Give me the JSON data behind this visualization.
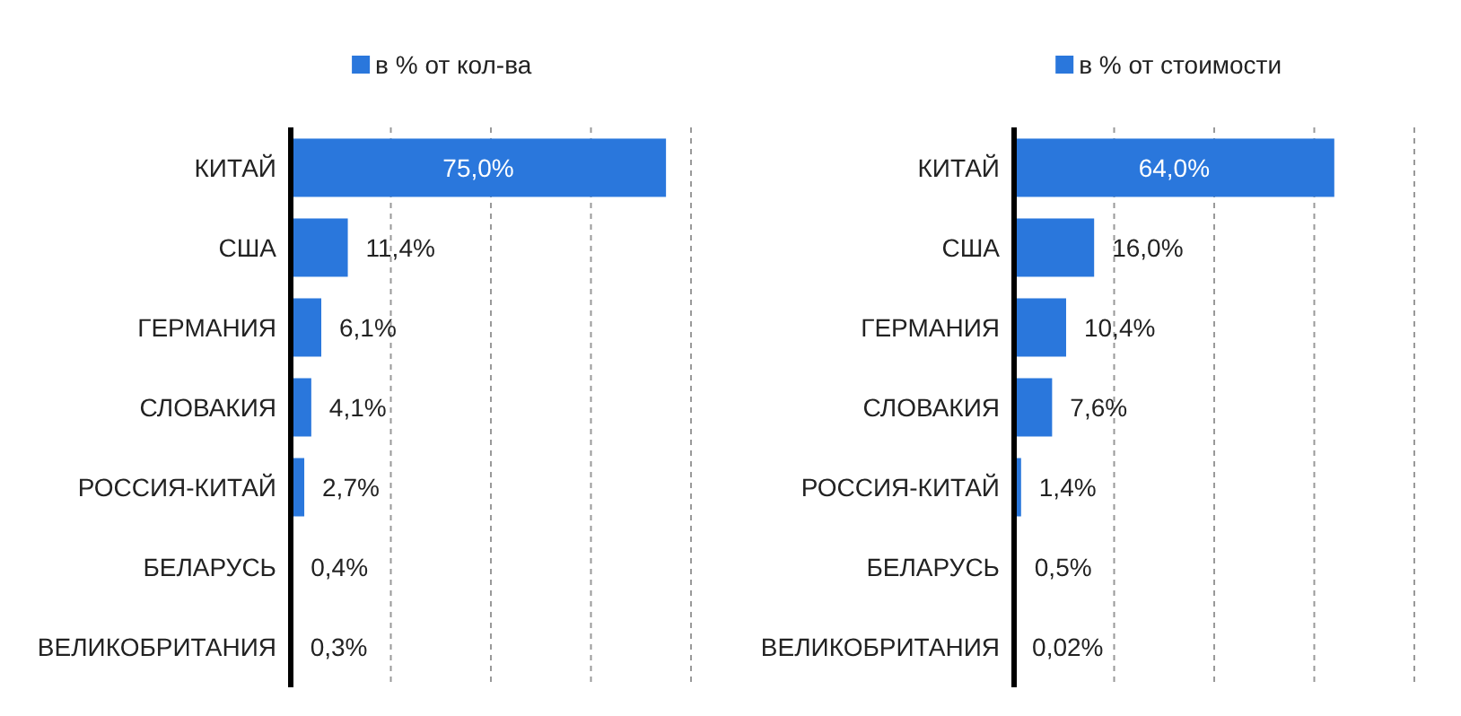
{
  "chart_data": [
    {
      "type": "bar",
      "orientation": "horizontal",
      "categories": [
        "КИТАЙ",
        "США",
        "ГЕРМАНИЯ",
        "СЛОВАКИЯ",
        "РОССИЯ-КИТАЙ",
        "БЕЛАРУСЬ",
        "ВЕЛИКОБРИТАНИЯ"
      ],
      "series": [
        {
          "name": "в % от кол-ва",
          "color": "#2a77dc",
          "values": [
            75.0,
            11.4,
            6.1,
            4.1,
            2.7,
            0.4,
            0.3
          ],
          "value_labels": [
            "75,0%",
            "11,4%",
            "6,1%",
            "4,1%",
            "2,7%",
            "0,4%",
            "0,3%"
          ]
        }
      ],
      "xlim": [
        0,
        80
      ],
      "xticks": [
        {
          "value": 20,
          "label": null
        },
        {
          "value": 40,
          "label": null
        },
        {
          "value": 60,
          "label": null
        },
        {
          "value": 80,
          "label": null
        }
      ],
      "tick_labels": "y",
      "grid": "x",
      "legend": "top"
    },
    {
      "type": "bar",
      "orientation": "horizontal",
      "categories": [
        "КИТАЙ",
        "США",
        "ГЕРМАНИЯ",
        "СЛОВАКИЯ",
        "РОССИЯ-КИТАЙ",
        "БЕЛАРУСЬ",
        "ВЕЛИКОБРИТАНИЯ"
      ],
      "series": [
        {
          "name": "в % от стоимости",
          "color": "#2a77dc",
          "values": [
            64.0,
            16.0,
            10.4,
            7.6,
            1.4,
            0.5,
            0.02
          ],
          "value_labels": [
            "64,0%",
            "16,0%",
            "10,4%",
            "7,6%",
            "1,4%",
            "0,5%",
            "0,02%"
          ]
        }
      ],
      "xlim": [
        0,
        80
      ],
      "xticks": [
        {
          "value": 20,
          "label": null
        },
        {
          "value": 40,
          "label": null
        },
        {
          "value": 60,
          "label": null
        },
        {
          "value": 80,
          "label": null
        }
      ],
      "tick_labels": "y",
      "grid": "x",
      "legend": "top"
    }
  ]
}
